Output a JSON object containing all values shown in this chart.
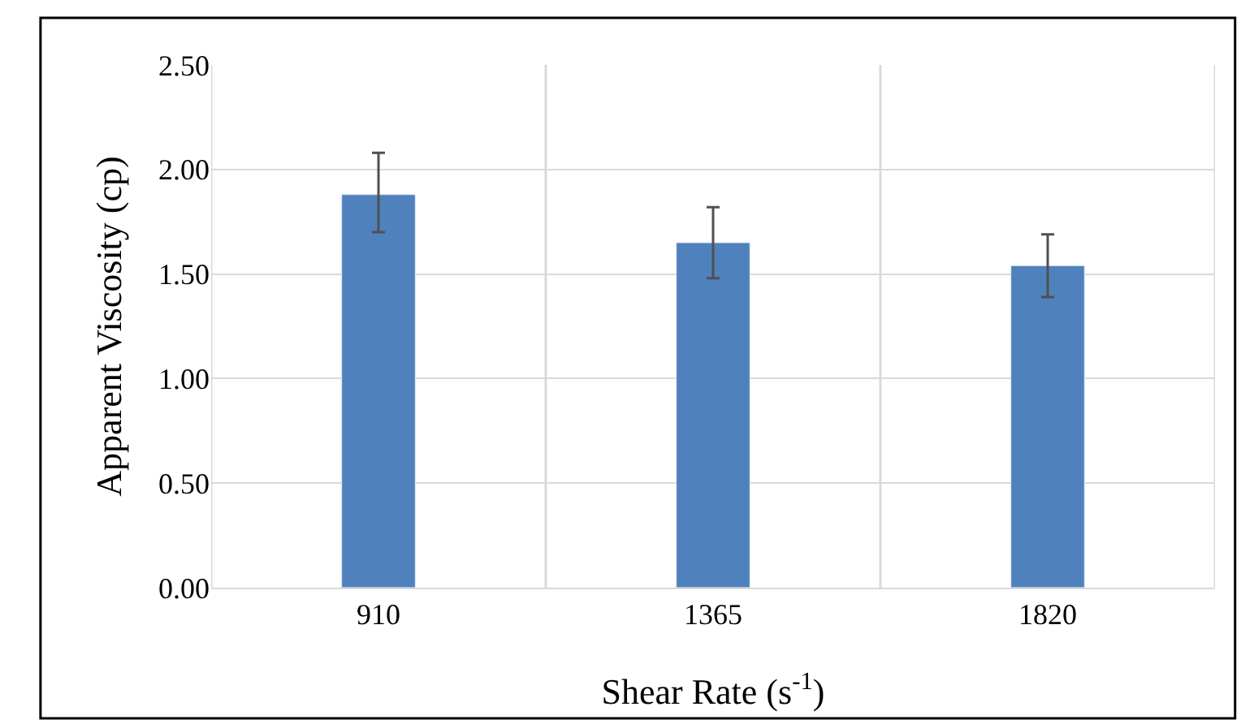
{
  "chart_data": {
    "type": "bar",
    "xlabel": "Shear Rate (s$^{-1}$)",
    "ylabel": "Apparent Viscosity (cp)",
    "categories": [
      "910",
      "1365",
      "1820"
    ],
    "values": [
      1.88,
      1.65,
      1.54
    ],
    "errors": [
      [
        1.7,
        2.08
      ],
      [
        1.48,
        1.82
      ],
      [
        1.39,
        1.69
      ]
    ],
    "color": "#4f81bd",
    "ylim": [
      0,
      2.5
    ],
    "yticks": [
      {
        "value": 0,
        "label": "0.00"
      },
      {
        "value": 0.5,
        "label": "0.50"
      },
      {
        "value": 1,
        "label": "1.00"
      },
      {
        "value": 1.5,
        "label": "1.50"
      },
      {
        "value": 2,
        "label": "2.00"
      },
      {
        "value": 2.5,
        "label": "2.50"
      }
    ],
    "grid": true,
    "legend": false
  }
}
